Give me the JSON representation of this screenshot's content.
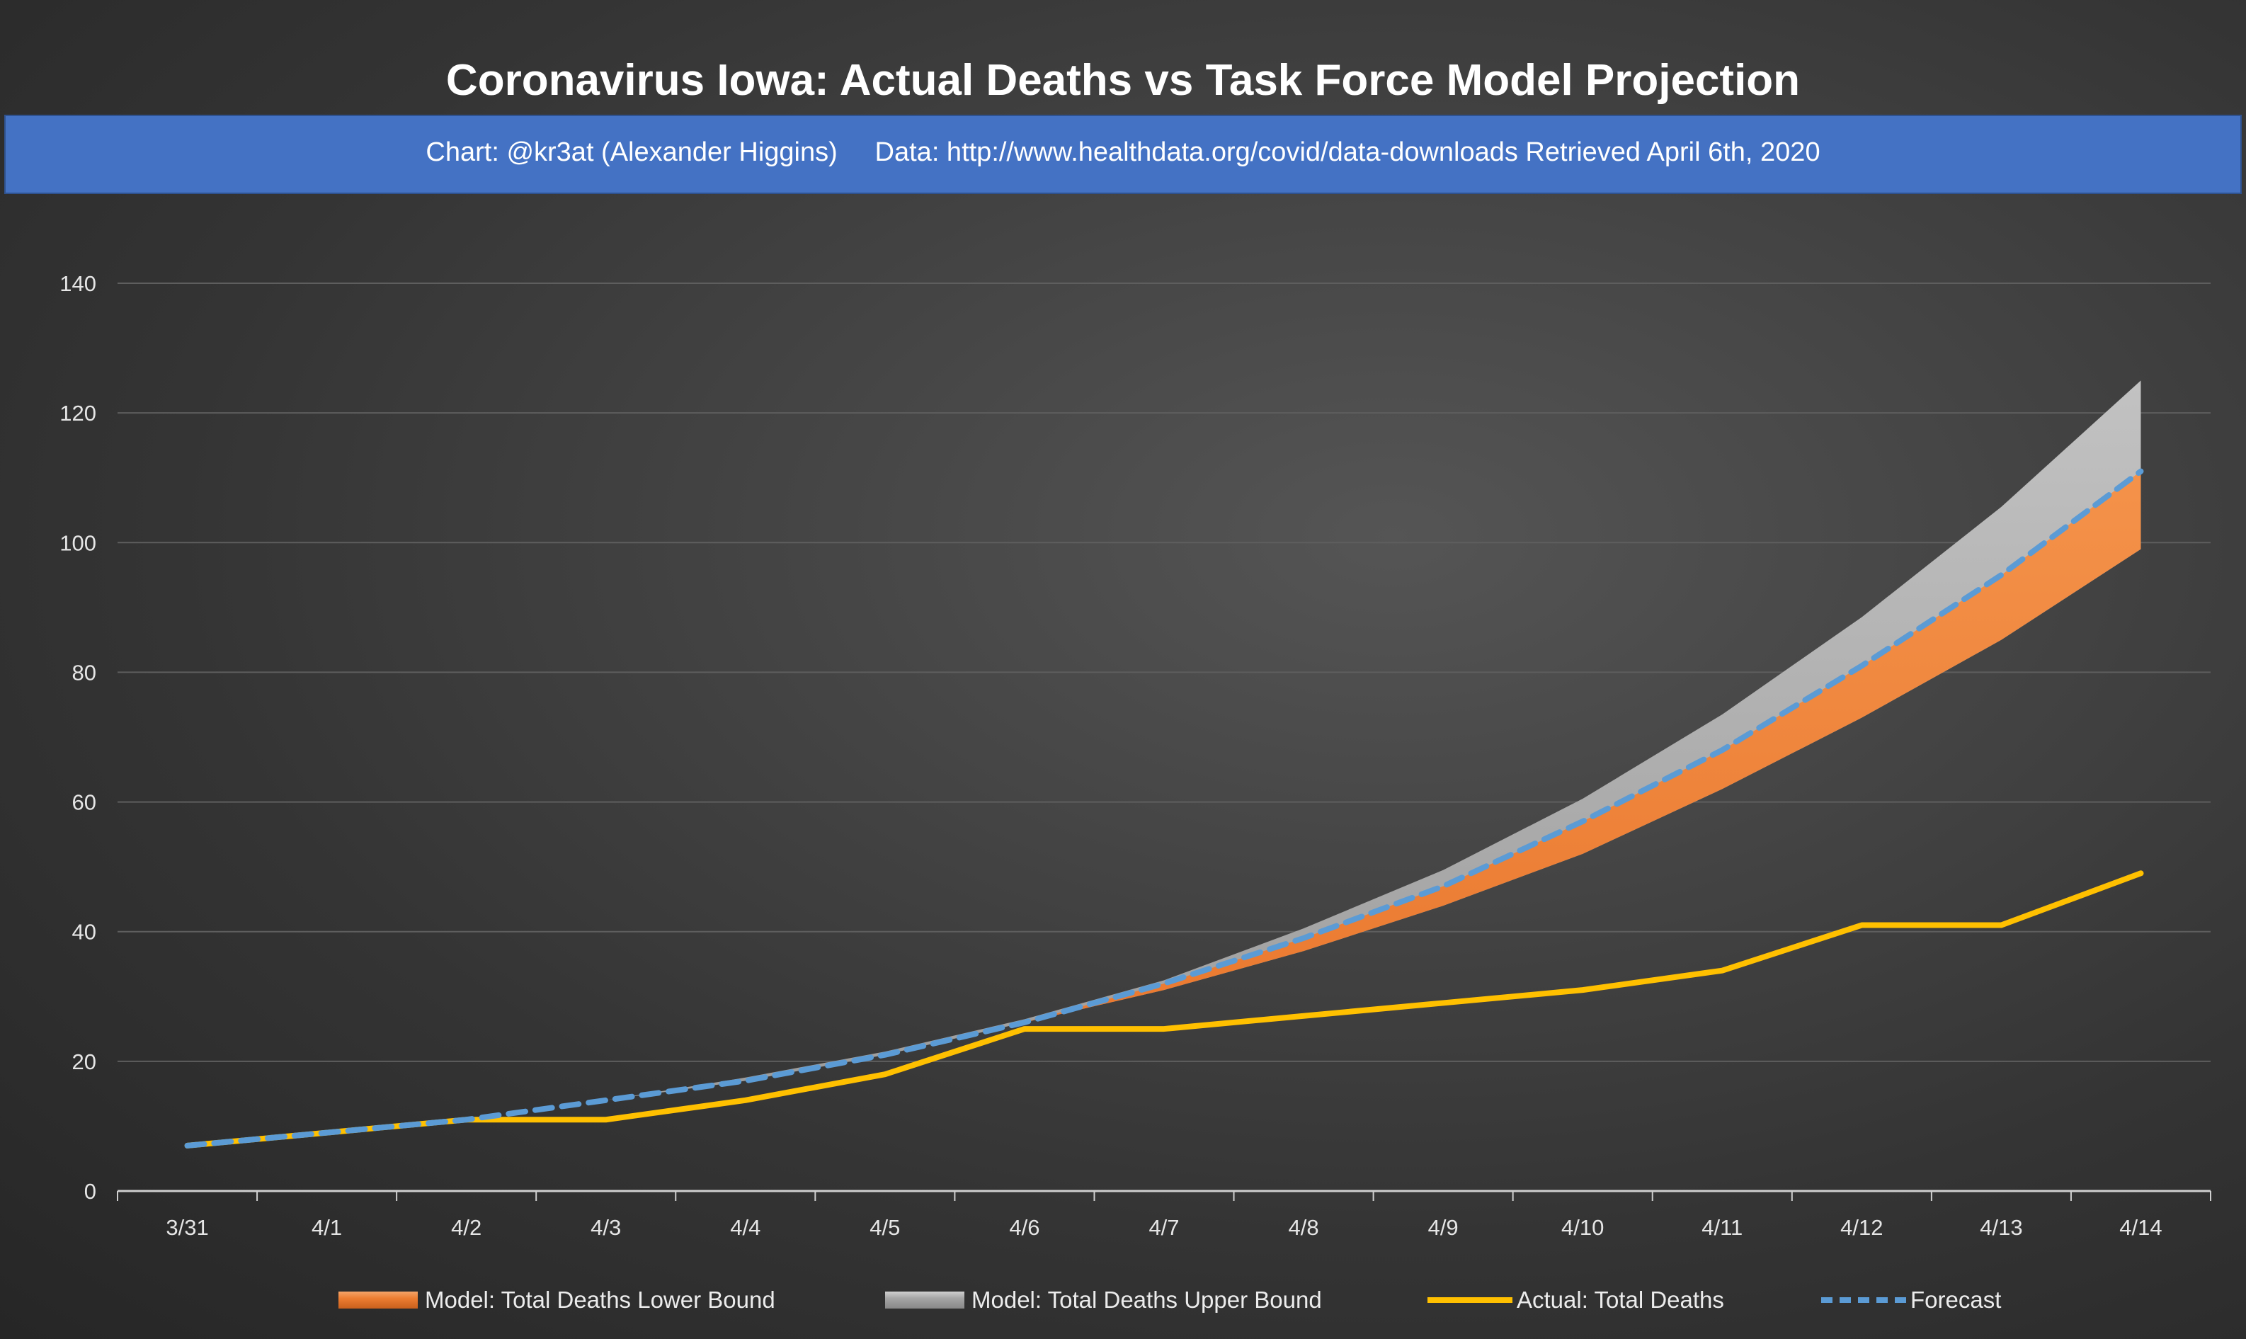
{
  "header": {
    "title": "Coronavirus Iowa: Actual Deaths vs Task Force Model Projection",
    "subtitle": "Chart: @kr3at (Alexander Higgins)     Data: http://www.healthdata.org/covid/data-downloads Retrieved April 6th, 2020"
  },
  "chart_data": {
    "type": "area",
    "title": "Coronavirus Iowa: Actual Deaths vs Task Force Model Projection",
    "subtitle": "Chart: @kr3at (Alexander Higgins)     Data: http://www.healthdata.org/covid/data-downloads Retrieved April 6th, 2020",
    "xlabel": "",
    "ylabel": "",
    "categories": [
      "3/31",
      "4/1",
      "4/2",
      "4/3",
      "4/4",
      "4/5",
      "4/6",
      "4/7",
      "4/8",
      "4/9",
      "4/10",
      "4/11",
      "4/12",
      "4/13",
      "4/14"
    ],
    "ylim": [
      0,
      140
    ],
    "yticks": [
      0,
      20,
      40,
      60,
      80,
      100,
      120,
      140
    ],
    "grid": true,
    "legend_position": "bottom",
    "series": [
      {
        "name": "Model: Total Deaths Lower Bound",
        "kind": "area",
        "color": "#ed7d31",
        "values": [
          7,
          9,
          11,
          14,
          17,
          21,
          26,
          31,
          37,
          44,
          52,
          62,
          73,
          85,
          99
        ]
      },
      {
        "name": "Model: Total Deaths Upper Bound",
        "kind": "area",
        "color": "#a5a5a5",
        "values": [
          7,
          9,
          11,
          14,
          17.5,
          21.5,
          26.5,
          32.5,
          40.5,
          49.5,
          60.5,
          73.5,
          88.5,
          105.5,
          125
        ]
      },
      {
        "name": "Actual: Total Deaths",
        "kind": "line",
        "color": "#ffc000",
        "values": [
          7,
          9,
          11,
          11,
          14,
          18,
          25,
          25,
          27,
          29,
          31,
          34,
          41,
          41,
          49
        ]
      },
      {
        "name": "Forecast",
        "kind": "dashed-line",
        "color": "#5b9bd5",
        "values": [
          7,
          9,
          11,
          14,
          17,
          21,
          26,
          32,
          39,
          47,
          57,
          68,
          81,
          95,
          111
        ]
      }
    ]
  }
}
